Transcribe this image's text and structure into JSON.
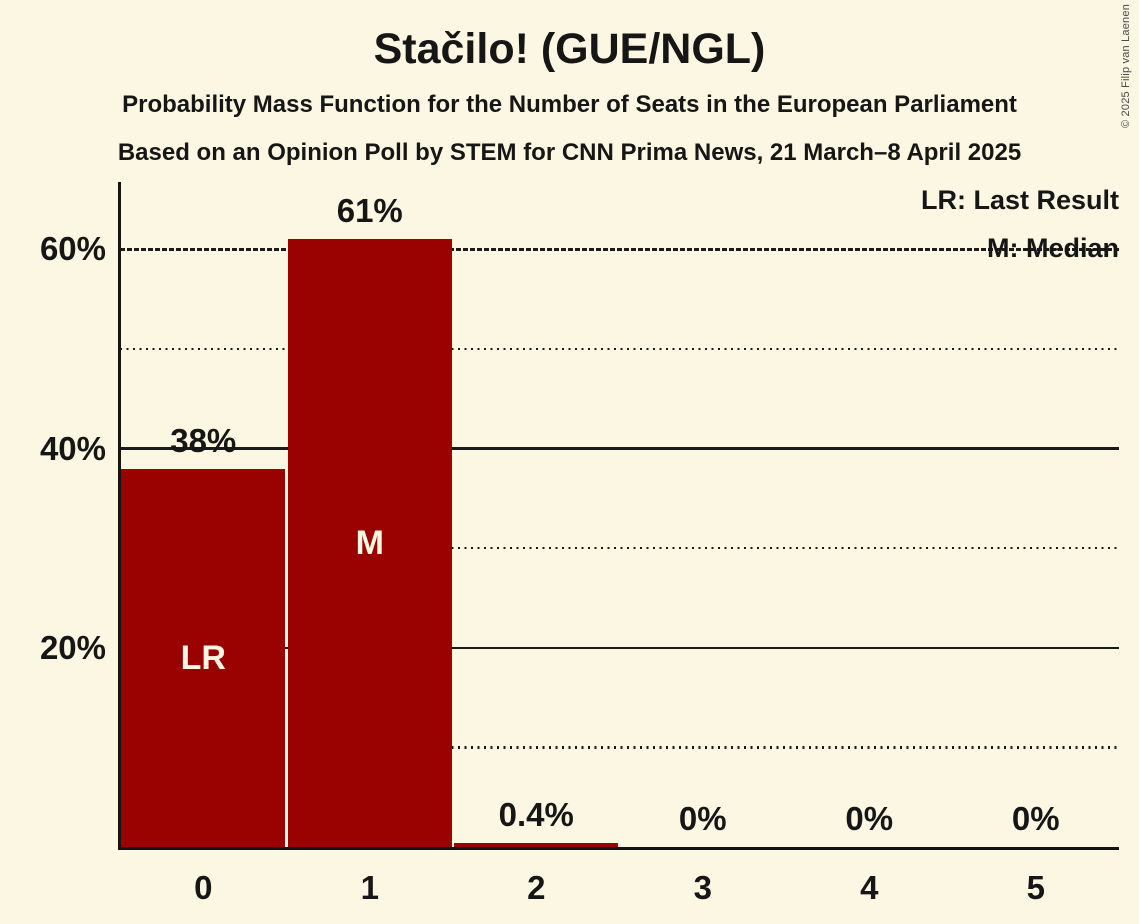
{
  "page": {
    "title": "Stačilo! (GUE/NGL)",
    "subtitle1": "Probability Mass Function for the Number of Seats in the European Parliament",
    "subtitle2": "Based on an Opinion Poll by STEM for CNN Prima News, 21 March–8 April 2025",
    "copyright": "© 2025 Filip van Laenen"
  },
  "legend": {
    "items": [
      {
        "label": "LR: Last Result"
      },
      {
        "label": "M: Median"
      }
    ]
  },
  "chart_data": {
    "type": "bar",
    "title": "Stačilo! (GUE/NGL)",
    "subtitle": "Probability Mass Function for the Number of Seats in the European Parliament — Based on an Opinion Poll by STEM for CNN Prima News, 21 March–8 April 2025",
    "categories": [
      "0",
      "1",
      "2",
      "3",
      "4",
      "5"
    ],
    "values": [
      38,
      61,
      0.4,
      0,
      0,
      0
    ],
    "value_labels": [
      "38%",
      "61%",
      "0.4%",
      "0%",
      "0%",
      "0%"
    ],
    "bar_annotations": [
      "LR",
      "M",
      "",
      "",
      "",
      ""
    ],
    "annotation_meanings": {
      "LR": "Last Result",
      "M": "Median"
    },
    "ylim": [
      0,
      66.6
    ],
    "yticks": [
      {
        "value": 20,
        "label": "20%",
        "style": "solid"
      },
      {
        "value": 40,
        "label": "40%",
        "style": "solid"
      },
      {
        "value": 60,
        "label": "60%",
        "style": "dashed"
      }
    ],
    "minor_gridlines": {
      "values": [
        10,
        30,
        50
      ],
      "style": "dotted"
    },
    "grid": "horizontal",
    "legend_position": "top-right",
    "colors": {
      "bar": "#9A0202",
      "background": "#FBF7E2",
      "text": "#161616",
      "bar_label": "#FBF7E2"
    }
  }
}
